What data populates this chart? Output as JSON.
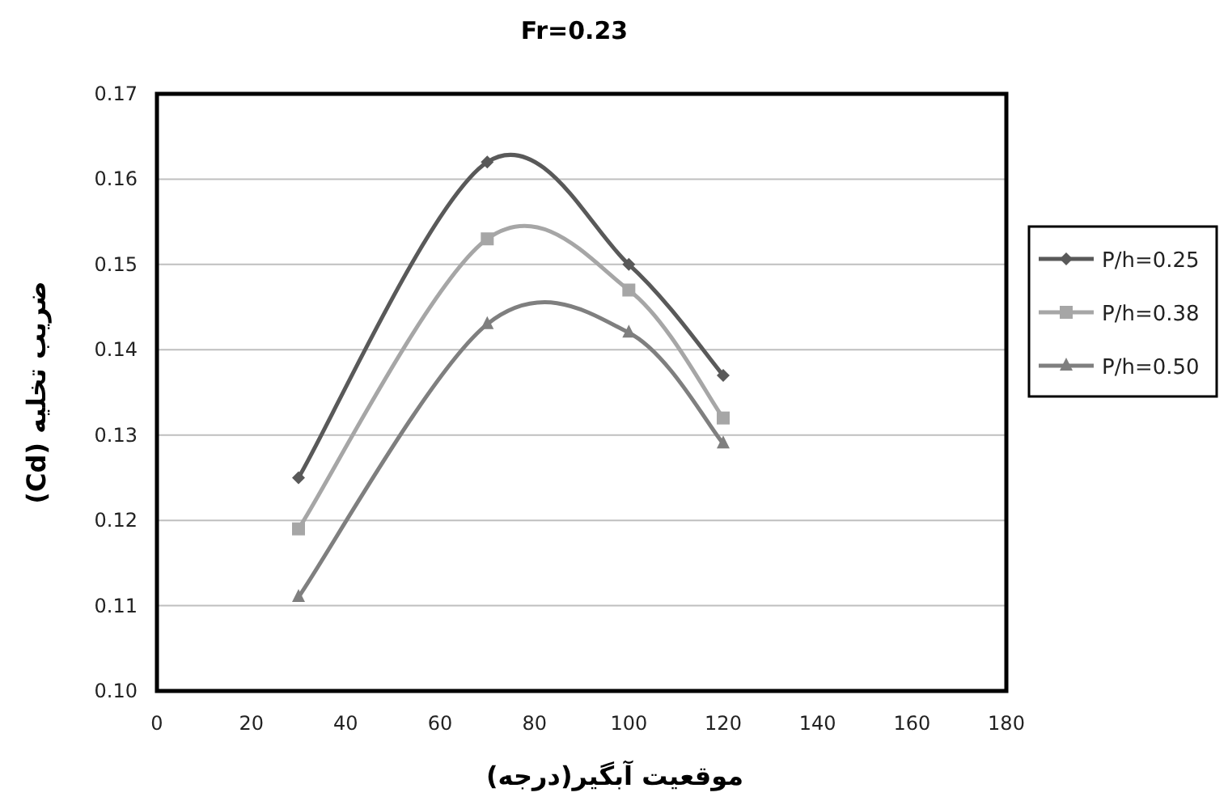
{
  "chart_data": {
    "type": "line",
    "title": "Fr=0.23",
    "xlabel": "موقعیت آبگیر(درجه)",
    "ylabel": "ضریب تخلیه (Cd)",
    "x": [
      30,
      70,
      100,
      120
    ],
    "series": [
      {
        "name": "P/h=0.25",
        "color": "#595959",
        "marker": "diamond",
        "values": [
          0.125,
          0.162,
          0.15,
          0.137
        ]
      },
      {
        "name": "P/h=0.38",
        "color": "#a6a6a6",
        "marker": "square",
        "values": [
          0.119,
          0.153,
          0.147,
          0.132
        ]
      },
      {
        "name": "P/h=0.50",
        "color": "#7f7f7f",
        "marker": "triangle",
        "values": [
          0.111,
          0.143,
          0.142,
          0.129
        ]
      }
    ],
    "xlim": [
      0,
      180
    ],
    "xticks": [
      0,
      20,
      40,
      60,
      80,
      100,
      120,
      140,
      160,
      180
    ],
    "ylim": [
      0.1,
      0.17
    ],
    "yticks": [
      {
        "value": 0.1,
        "label": "0.10"
      },
      0.11,
      0.12,
      0.13,
      0.14,
      0.15,
      0.16,
      0.17
    ],
    "grid": "y",
    "legend": "right"
  }
}
